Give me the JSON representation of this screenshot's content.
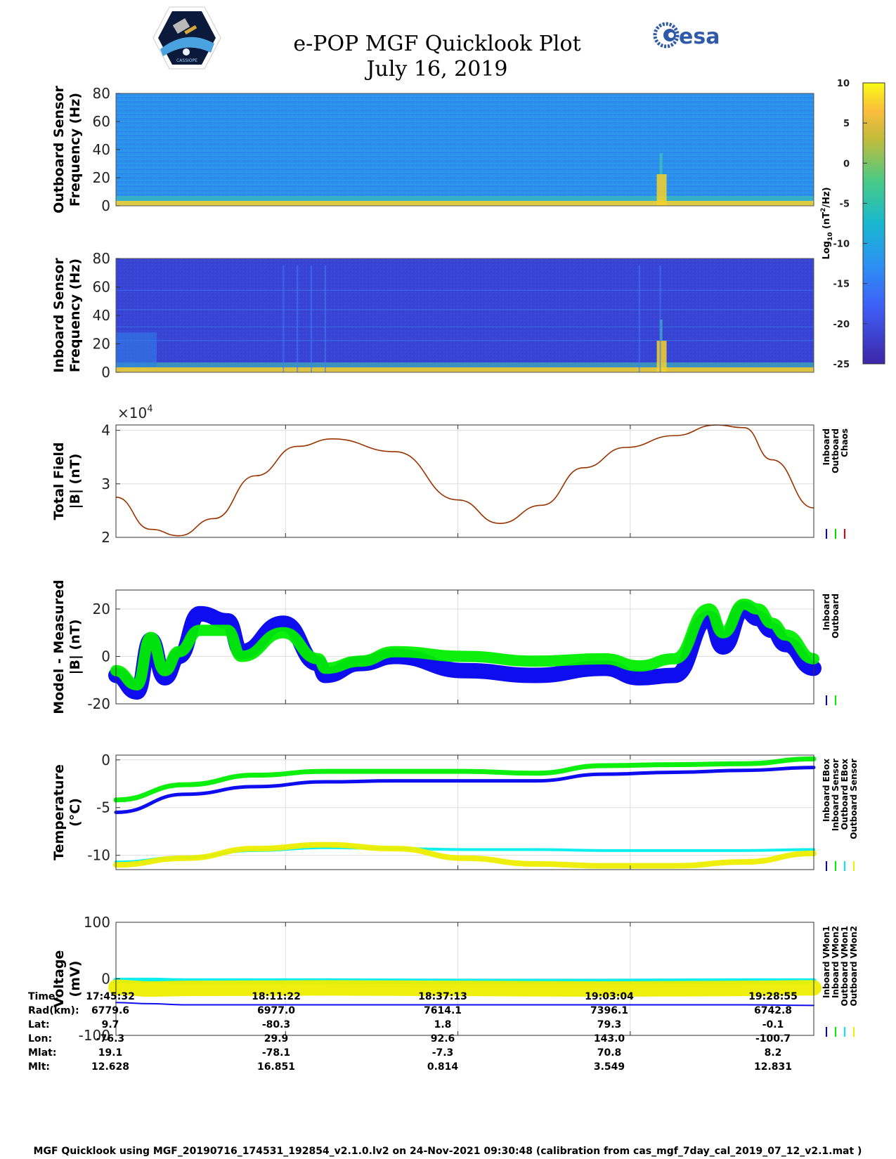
{
  "header": {
    "title_line1": "e-POP MGF Quicklook Plot",
    "title_line2": "July 16, 2019",
    "esa_logo_text": "esa",
    "cassiope_logo_text": "CASSIOPE"
  },
  "colorbar": {
    "label": "Log10 (nT2/Hz)",
    "ticks": [
      "10",
      "5",
      "0",
      "-5",
      "-10",
      "-15",
      "-20",
      "-25"
    ],
    "range": [
      -25,
      10
    ]
  },
  "chart_data": [
    {
      "type": "heatmap",
      "name": "outboard-spectrogram",
      "ylabel_line1": "Outboard Sensor",
      "ylabel_line2": "Frequency (Hz)",
      "ylim": [
        0,
        80
      ],
      "yticks": [
        "80",
        "60",
        "40",
        "20",
        "0"
      ],
      "background_log_psd": -10
    },
    {
      "type": "heatmap",
      "name": "inboard-spectrogram",
      "ylabel_line1": "Inboard Sensor",
      "ylabel_line2": "Frequency (Hz)",
      "ylim": [
        0,
        80
      ],
      "yticks": [
        "80",
        "60",
        "40",
        "20",
        "0"
      ],
      "background_log_psd": -22
    },
    {
      "type": "line",
      "name": "total-field",
      "ylabel_line1": "Total Field",
      "ylabel_line2": "|B| (nT)",
      "exponent": "×10",
      "exponent_power": "4",
      "ylim": [
        2,
        4.1
      ],
      "yticks": [
        "4",
        "3",
        "2"
      ],
      "x": [
        0,
        0.05,
        0.09,
        0.14,
        0.2,
        0.26,
        0.31,
        0.4,
        0.49,
        0.55,
        0.61,
        0.67,
        0.73,
        0.8,
        0.86,
        0.9,
        0.94,
        1.0
      ],
      "values": [
        2.75,
        2.15,
        2.03,
        2.35,
        3.15,
        3.7,
        3.84,
        3.6,
        2.7,
        2.26,
        2.6,
        3.3,
        3.68,
        3.9,
        4.1,
        4.05,
        3.45,
        2.55
      ],
      "legend": [
        "Inboard",
        "Outboard",
        "Chaos"
      ],
      "legend_colors": [
        "#0000ee",
        "#00dd00",
        "#ee0000"
      ],
      "line_color": "#993300"
    },
    {
      "type": "line",
      "name": "model-minus-measured",
      "ylabel_line1": "Model - Measured",
      "ylabel_line2": "|B| (nT)",
      "ylim": [
        -20,
        28
      ],
      "yticks": [
        "20",
        "0",
        "-20"
      ],
      "x": [
        0,
        0.03,
        0.05,
        0.07,
        0.09,
        0.12,
        0.16,
        0.18,
        0.24,
        0.29,
        0.3,
        0.35,
        0.4,
        0.5,
        0.6,
        0.7,
        0.75,
        0.8,
        0.85,
        0.87,
        0.9,
        0.92,
        0.94,
        0.96,
        1.0
      ],
      "series": [
        {
          "name": "Inboard",
          "color": "#0000ee",
          "values": [
            -8,
            -15,
            7,
            -9,
            0,
            18,
            15,
            2,
            14,
            -3,
            -8,
            -3,
            0,
            -6,
            -8,
            -5,
            -9,
            -8,
            16,
            4,
            20,
            16,
            11,
            5,
            -5
          ]
        },
        {
          "name": "Outboard",
          "color": "#00ee00",
          "values": [
            -6,
            -12,
            8,
            -6,
            2,
            11,
            11,
            0,
            10,
            -1,
            -5,
            -2,
            2,
            0,
            -2,
            -1,
            -4,
            -1,
            20,
            10,
            22,
            20,
            14,
            9,
            -1
          ]
        }
      ],
      "legend": [
        "Inboard",
        "Outboard"
      ]
    },
    {
      "type": "line",
      "name": "temperature",
      "ylabel_line1": "Temperature",
      "ylabel_line2": "(°C)",
      "ylim": [
        -11.5,
        0.5
      ],
      "yticks": [
        "0",
        "-5",
        "-10"
      ],
      "x": [
        0,
        0.1,
        0.2,
        0.3,
        0.4,
        0.5,
        0.6,
        0.7,
        0.8,
        0.9,
        1.0
      ],
      "series": [
        {
          "name": "Inboard EBox",
          "color": "#0000ee",
          "values": [
            -5.5,
            -3.6,
            -2.8,
            -2.3,
            -2.2,
            -2.2,
            -2.2,
            -1.5,
            -1.3,
            -1.1,
            -0.8
          ]
        },
        {
          "name": "Inboard Sensor",
          "color": "#00ee00",
          "values": [
            -4.2,
            -2.6,
            -1.6,
            -1.2,
            -1.2,
            -1.2,
            -1.4,
            -0.6,
            -0.5,
            -0.4,
            0.1
          ]
        },
        {
          "name": "Outboard EBox",
          "color": "#00eeee",
          "values": [
            -10.7,
            -10.2,
            -9.5,
            -9.2,
            -9.3,
            -9.4,
            -9.4,
            -9.5,
            -9.5,
            -9.5,
            -9.4
          ]
        },
        {
          "name": "Outboard Sensor",
          "color": "#eeee00",
          "values": [
            -11.0,
            -10.3,
            -9.3,
            -8.9,
            -9.3,
            -10.3,
            -10.9,
            -11.1,
            -11.1,
            -10.7,
            -9.8
          ]
        }
      ],
      "legend": [
        "Inboard EBox",
        "Inboard Sensor",
        "Outboard EBox",
        "Outboard Sensor"
      ]
    },
    {
      "type": "line",
      "name": "voltage",
      "ylabel_line1": "Voltage",
      "ylabel_line2": "(mV)",
      "ylim": [
        -100,
        100
      ],
      "yticks": [
        "100",
        "0",
        "-100"
      ],
      "x": [
        0,
        0.05,
        0.1,
        0.3,
        0.5,
        0.7,
        0.9,
        1.0
      ],
      "series": [
        {
          "name": "Inboard VMon1",
          "color": "#0000ee",
          "values": [
            -42,
            -44,
            -46,
            -46,
            -46,
            -46,
            -46,
            -47
          ]
        },
        {
          "name": "Inboard VMon2",
          "color": "#00ee00",
          "values": [
            -5,
            -5,
            -5,
            -5,
            -5,
            -5,
            -5,
            -5
          ]
        },
        {
          "name": "Outboard VMon1",
          "color": "#00eeee",
          "values": [
            -3,
            -3,
            -4,
            -4,
            -5,
            -5,
            -4,
            -4
          ]
        },
        {
          "name": "Outboard VMon2",
          "color": "#eeee00",
          "values": [
            -15,
            -18,
            -17,
            -16,
            -17,
            -18,
            -17,
            -16
          ]
        }
      ],
      "legend": [
        "Inboard VMon1",
        "Inboard VMon2",
        "Outboard VMon1",
        "Outboard VMon2"
      ]
    }
  ],
  "ephemeris": {
    "row_labels": [
      "Time:",
      "Rad(km):",
      "Lat:",
      "Lon:",
      "Mlat:",
      "Mlt:"
    ],
    "columns": [
      [
        "17:45:32",
        "6779.6",
        "9.7",
        "-76.3",
        "19.1",
        "12.628"
      ],
      [
        "18:11:22",
        "6977.0",
        "-80.3",
        "29.9",
        "-78.1",
        "16.851"
      ],
      [
        "18:37:13",
        "7614.1",
        "1.8",
        "92.6",
        "-7.3",
        "0.814"
      ],
      [
        "19:03:04",
        "7396.1",
        "79.3",
        "143.0",
        "70.8",
        "3.549"
      ],
      [
        "19:28:55",
        "6742.8",
        "-0.1",
        "-100.7",
        "8.2",
        "12.831"
      ]
    ]
  },
  "footer": "MGF Quicklook using MGF_20190716_174531_192854_v2.1.0.lv2 on 24-Nov-2021 09:30:48 (calibration from cas_mgf_7day_cal_2019_07_12_v2.1.mat )"
}
